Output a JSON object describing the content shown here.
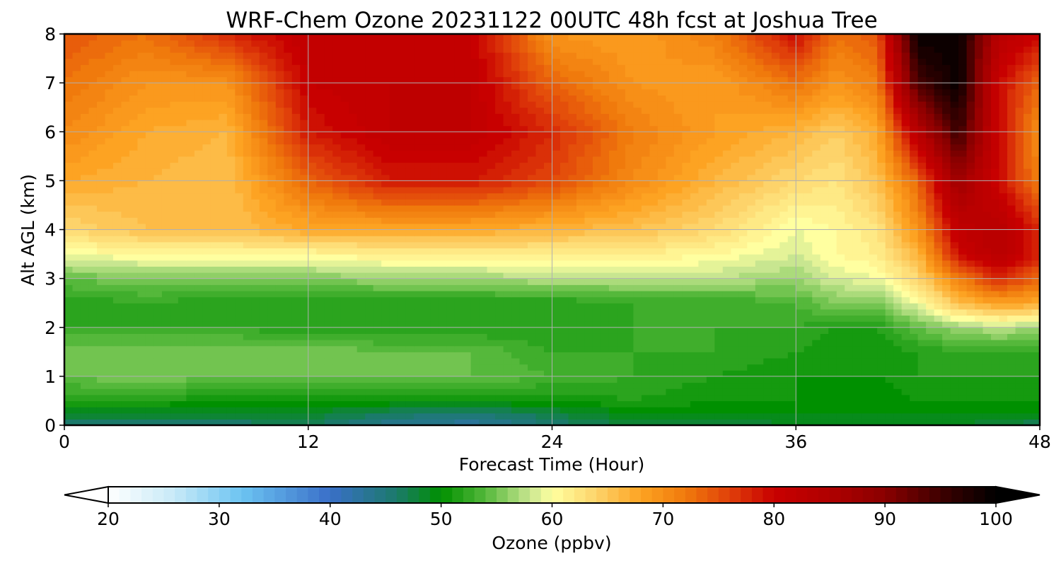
{
  "chart_data": {
    "type": "heatmap",
    "title": "WRF-Chem Ozone  20231122 00UTC 48h fcst at Joshua Tree",
    "xlabel": "Forecast Time (Hour)",
    "ylabel": "Alt AGL (km)",
    "xlim": [
      0,
      48
    ],
    "ylim": [
      0,
      8
    ],
    "x_ticks": [
      "0",
      "12",
      "24",
      "36",
      "48"
    ],
    "y_ticks": [
      "0",
      "1",
      "2",
      "3",
      "4",
      "5",
      "6",
      "7",
      "8"
    ],
    "grid": true,
    "field": {
      "x": [
        0,
        4,
        8,
        12,
        16,
        20,
        24,
        28,
        32,
        36,
        38,
        40,
        42,
        44,
        46,
        48
      ],
      "y": [
        0,
        0.25,
        0.5,
        1,
        1.5,
        2,
        2.5,
        3,
        3.5,
        4,
        5,
        6,
        7,
        8
      ],
      "z": [
        [
          45,
          46,
          46,
          47,
          44,
          43,
          46,
          48,
          48,
          49,
          49,
          49,
          49,
          49,
          48,
          47
        ],
        [
          49,
          49,
          49,
          49,
          47,
          46,
          48,
          50,
          50,
          50,
          50,
          50,
          50,
          50,
          50,
          50
        ],
        [
          52,
          52,
          51,
          51,
          51,
          51,
          51,
          52,
          51,
          51,
          50,
          50,
          51,
          51,
          51,
          51
        ],
        [
          55,
          56,
          55,
          55,
          55,
          55,
          54,
          53,
          52,
          51,
          51,
          51,
          52,
          52,
          52,
          52
        ],
        [
          56,
          56,
          56,
          56,
          55,
          55,
          53,
          53,
          53,
          52,
          51,
          51,
          52,
          53,
          53,
          53
        ],
        [
          53,
          53,
          53,
          52,
          52,
          52,
          52,
          53,
          53,
          53,
          52,
          52,
          55,
          57,
          58,
          57
        ],
        [
          52,
          53,
          52,
          52,
          52,
          52,
          52,
          53,
          53,
          54,
          56,
          56,
          60,
          66,
          69,
          68
        ],
        [
          55,
          56,
          56,
          56,
          57,
          57,
          58,
          58,
          58,
          57,
          59,
          60,
          64,
          72,
          78,
          74
        ],
        [
          60,
          61,
          61,
          61,
          62,
          62,
          62,
          62,
          61,
          59,
          61,
          62,
          67,
          80,
          84,
          78
        ],
        [
          64,
          66,
          66,
          68,
          68,
          68,
          67,
          66,
          64,
          60,
          61,
          63,
          70,
          82,
          84,
          78
        ],
        [
          68,
          67,
          66,
          74,
          79,
          79,
          76,
          71,
          67,
          64,
          63,
          66,
          74,
          88,
          80,
          72
        ],
        [
          71,
          68,
          67,
          79,
          82,
          82,
          78,
          72,
          69,
          67,
          65,
          68,
          84,
          96,
          80,
          70
        ],
        [
          73,
          70,
          70,
          81,
          82,
          82,
          74,
          70,
          69,
          73,
          70,
          72,
          95,
          100,
          80,
          74
        ],
        [
          75,
          73,
          78,
          82,
          82,
          81,
          70,
          69,
          72,
          80,
          73,
          75,
          100,
          100,
          84,
          80
        ]
      ]
    },
    "colorbar": {
      "label": "Ozone  (ppbv)",
      "ticks": [
        "20",
        "30",
        "40",
        "50",
        "60",
        "70",
        "80",
        "90",
        "100"
      ],
      "range": [
        20,
        100
      ],
      "extend": "both"
    },
    "colors": {
      "20": "#ffffff",
      "26": "#c7e9f7",
      "32": "#6cc4f2",
      "40": "#3a6fc8",
      "46": "#1b7a6a",
      "50": "#009000",
      "54": "#55b83b",
      "58": "#c8e690",
      "60": "#ffffa0",
      "64": "#fdd36a",
      "68": "#fda322",
      "72": "#f07a0c",
      "76": "#e0400a",
      "80": "#c80000",
      "85": "#b00000",
      "90": "#8a0000",
      "95": "#3e0000",
      "100": "#000000"
    }
  }
}
